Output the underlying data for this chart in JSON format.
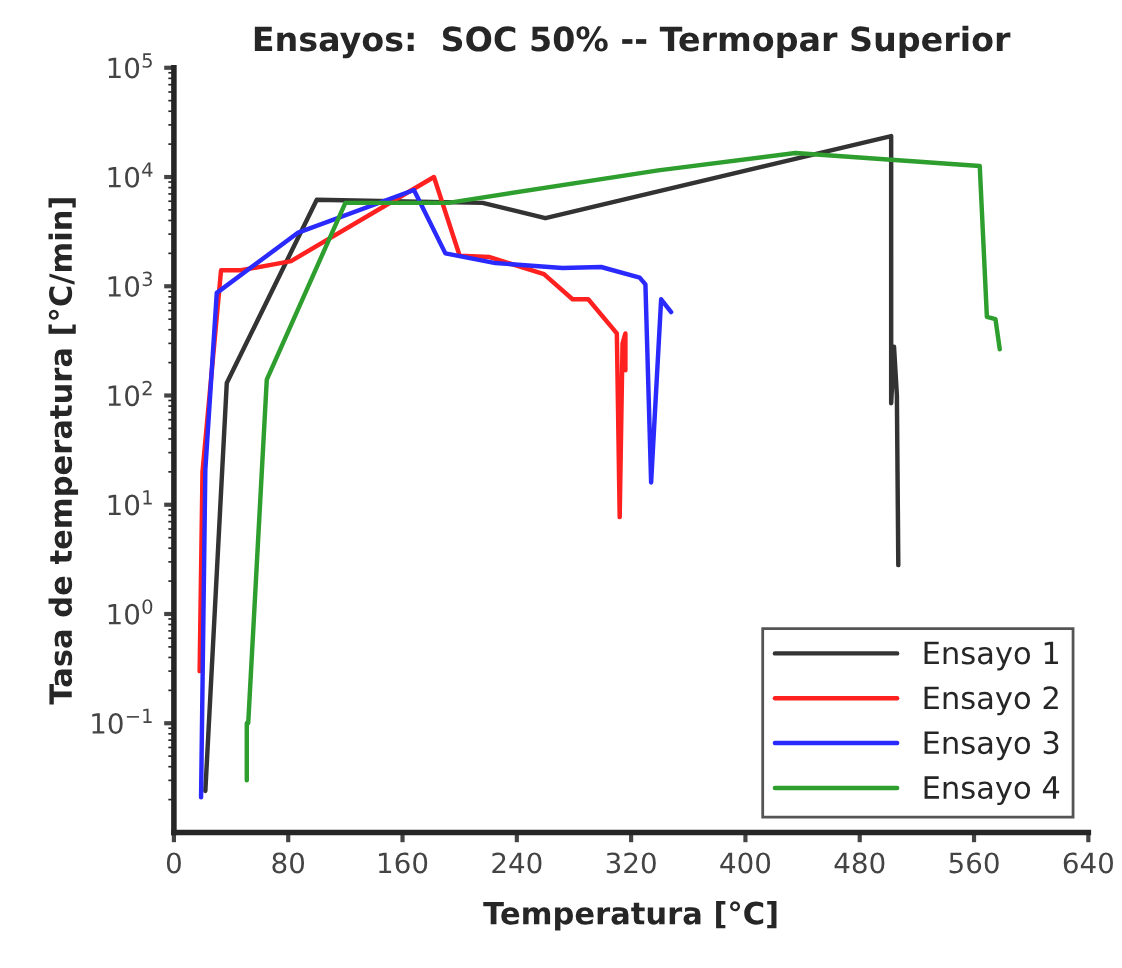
{
  "chart_data": {
    "type": "line",
    "title": "Ensayos:  SOC 50% -- Termopar Superior",
    "xlabel": "Temperatura [°C]",
    "ylabel": "Tasa de temperatura [°C/min]",
    "log": "y",
    "xlim": [
      0,
      640
    ],
    "ylim": [
      0.01,
      100000
    ],
    "xticks": [
      0,
      80,
      160,
      240,
      320,
      400,
      480,
      560,
      640
    ],
    "yticks": [
      {
        "value": 0.1,
        "label": "10$^{−1}$"
      },
      {
        "value": 1,
        "label": "10$^{0}$"
      },
      {
        "value": 10,
        "label": "10$^{1}$"
      },
      {
        "value": 100,
        "label": "10$^{2}$"
      },
      {
        "value": 1000,
        "label": "10$^{3}$"
      },
      {
        "value": 10000,
        "label": "10$^{4}$"
      },
      {
        "value": 100000,
        "label": "10$^{5}$"
      }
    ],
    "grid": false,
    "legend": "bottom right",
    "line_style": "solid",
    "marker": "none",
    "series": [
      {
        "name": "Ensayo 1",
        "color": "#333333",
        "x": [
          22,
          37,
          100,
          216,
          260,
          502,
          502,
          504,
          506,
          507
        ],
        "values": [
          0.024,
          130,
          6200,
          5800,
          4200,
          23700,
          85,
          280,
          100,
          2.8
        ]
      },
      {
        "name": "Ensayo 2",
        "color": "#ff2020",
        "x": [
          18,
          20,
          33,
          47,
          82,
          182,
          200,
          221,
          259,
          279,
          290,
          310,
          312,
          314,
          316,
          316
        ],
        "values": [
          0.3,
          20,
          1400,
          1400,
          1700,
          10000,
          1900,
          1850,
          1290,
          760,
          760,
          370,
          7.7,
          300,
          370,
          170
        ]
      },
      {
        "name": "Ensayo 3",
        "color": "#2a2aff",
        "x": [
          19,
          22,
          30,
          87,
          168,
          190,
          225,
          272,
          299,
          326,
          330,
          334,
          341,
          348
        ],
        "values": [
          0.021,
          21,
          870,
          3100,
          7600,
          2000,
          1630,
          1470,
          1500,
          1200,
          1040,
          16,
          760,
          580
        ]
      },
      {
        "name": "Ensayo 4",
        "color": "#2e9e2e",
        "x": [
          51,
          51,
          52,
          65,
          120,
          192,
          339,
          435,
          564,
          569,
          575,
          578
        ],
        "values": [
          0.03,
          0.1,
          0.1,
          140,
          5800,
          5800,
          11500,
          16600,
          12600,
          525,
          500,
          265
        ]
      }
    ]
  }
}
